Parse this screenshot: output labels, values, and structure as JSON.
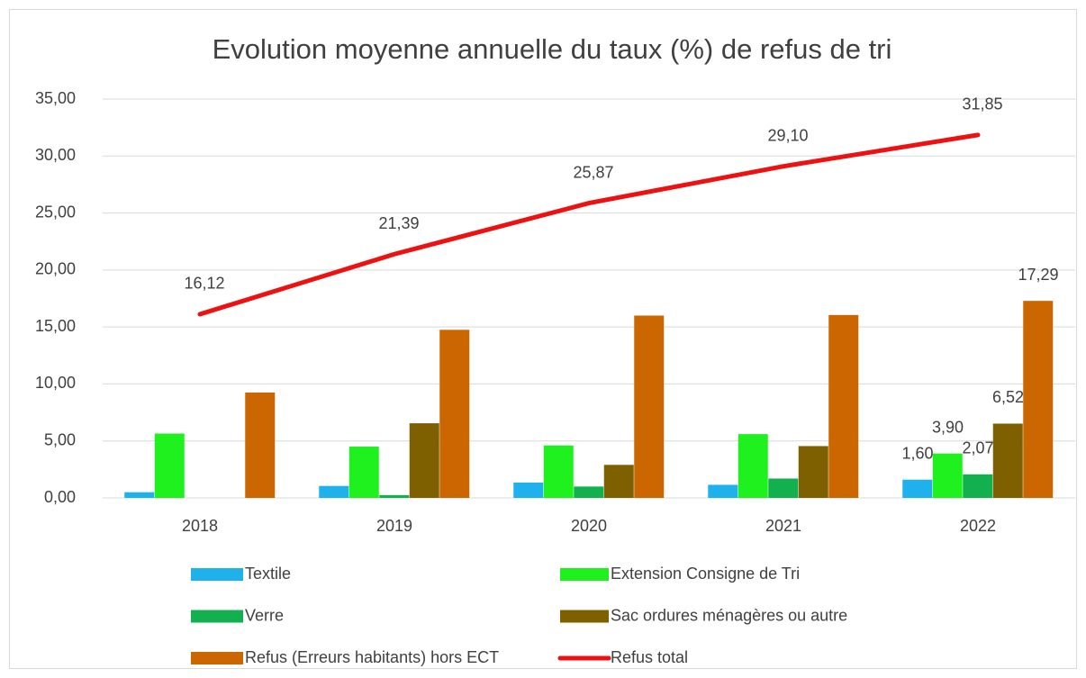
{
  "chart_data": {
    "type": "bar",
    "title": "Evolution moyenne annuelle du taux (%) de refus de tri",
    "categories": [
      "2018",
      "2019",
      "2020",
      "2021",
      "2022"
    ],
    "series": [
      {
        "name": "Textile",
        "color": "#1fb1ec",
        "values": [
          0.5,
          1.05,
          1.35,
          1.15,
          1.6
        ],
        "value_labels": [
          null,
          null,
          null,
          null,
          "1,60"
        ]
      },
      {
        "name": "Extension Consigne de Tri",
        "color": "#1ef11e",
        "values": [
          5.65,
          4.5,
          4.6,
          5.6,
          3.9
        ],
        "value_labels": [
          null,
          null,
          null,
          null,
          "3,90"
        ]
      },
      {
        "name": "Verre",
        "color": "#12b04f",
        "values": [
          0,
          0.25,
          1.0,
          1.7,
          2.07
        ],
        "value_labels": [
          null,
          null,
          null,
          null,
          "2,07"
        ]
      },
      {
        "name": "Sac ordures ménagères ou autre",
        "color": "#7f6000",
        "values": [
          0,
          6.55,
          2.9,
          4.55,
          6.52
        ],
        "value_labels": [
          null,
          null,
          null,
          null,
          "6,52"
        ]
      },
      {
        "name": "Refus  (Erreurs habitants) hors ECT",
        "color": "#cc6600",
        "values": [
          9.25,
          14.75,
          16.0,
          16.05,
          17.29
        ],
        "value_labels": [
          null,
          null,
          null,
          null,
          "17,29"
        ]
      },
      {
        "name": "Refus total",
        "type": "line",
        "color": "#ee1111",
        "values": [
          16.12,
          21.39,
          25.87,
          29.1,
          31.85
        ],
        "value_labels": [
          "16,12",
          "21,39",
          "25,87",
          "29,10",
          "31,85"
        ]
      }
    ],
    "ylim": [
      0,
      35
    ],
    "yticks": [
      {
        "value": 0,
        "label": "0,00"
      },
      {
        "value": 5,
        "label": "5,00"
      },
      {
        "value": 10,
        "label": "10,00"
      },
      {
        "value": 15,
        "label": "15,00"
      },
      {
        "value": 20,
        "label": "20,00"
      },
      {
        "value": 25,
        "label": "25,00"
      },
      {
        "value": 30,
        "label": "30,00"
      },
      {
        "value": 35,
        "label": "35,00"
      }
    ],
    "grid": true,
    "legend": "bottom"
  }
}
